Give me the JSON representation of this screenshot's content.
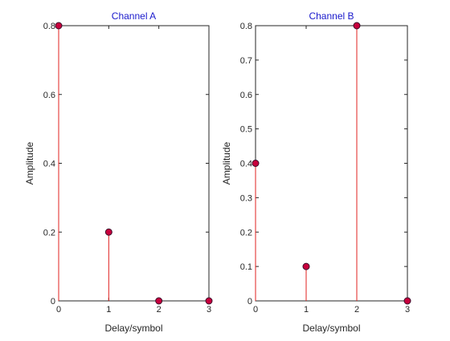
{
  "chart_data": [
    {
      "type": "stem",
      "title": "Channel A",
      "xlabel": "Delay/symbol",
      "ylabel": "Amplitude",
      "x": [
        0,
        1,
        2,
        3
      ],
      "y": [
        0.8,
        0.2,
        0,
        0
      ],
      "xlim": [
        0,
        3
      ],
      "ylim": [
        0,
        0.8
      ],
      "xticks": [
        0,
        1,
        2,
        3
      ],
      "yticks": [
        0,
        0.2,
        0.4,
        0.6,
        0.8
      ],
      "ytick_labels": [
        "0",
        "0.2",
        "0.4",
        "0.6",
        "0.8"
      ],
      "grid": false,
      "stem_color": "#e0201f",
      "marker_fill": "#c8003c",
      "marker_edge": "#3a0a2a"
    },
    {
      "type": "stem",
      "title": "Channel B",
      "xlabel": "Delay/symbol",
      "ylabel": "Amplitude",
      "x": [
        0,
        1,
        2,
        3
      ],
      "y": [
        0.4,
        0.1,
        0.8,
        0
      ],
      "xlim": [
        0,
        3
      ],
      "ylim": [
        0,
        0.8
      ],
      "xticks": [
        0,
        1,
        2,
        3
      ],
      "yticks": [
        0,
        0.1,
        0.2,
        0.3,
        0.4,
        0.5,
        0.6,
        0.7,
        0.8
      ],
      "ytick_labels": [
        "0",
        "0.1",
        "0.2",
        "0.3",
        "0.4",
        "0.5",
        "0.6",
        "0.7",
        "0.8"
      ],
      "grid": false,
      "stem_color": "#e0201f",
      "marker_fill": "#c8003c",
      "marker_edge": "#3a0a2a"
    }
  ]
}
